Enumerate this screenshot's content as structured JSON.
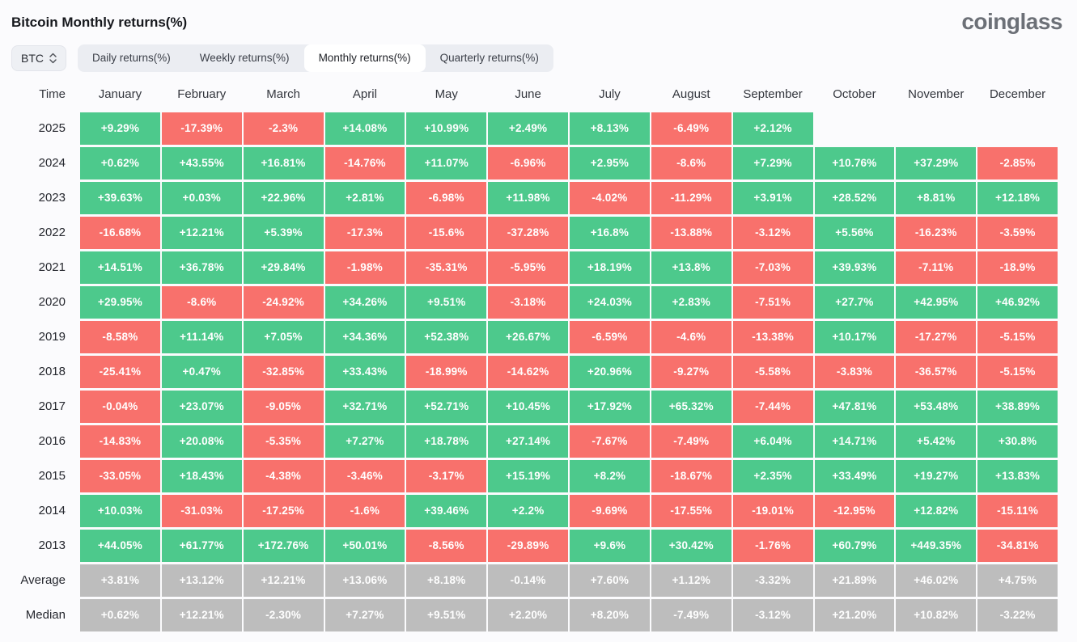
{
  "header": {
    "title": "Bitcoin Monthly returns(%)",
    "logo": "coinglass"
  },
  "toolbar": {
    "symbol_selector": {
      "value": "BTC"
    },
    "tabs": [
      {
        "label": "Daily returns(%)",
        "active": false
      },
      {
        "label": "Weekly returns(%)",
        "active": false
      },
      {
        "label": "Monthly returns(%)",
        "active": true
      },
      {
        "label": "Quarterly returns(%)",
        "active": false
      }
    ]
  },
  "colors": {
    "positive": "#4dc98c",
    "negative": "#f8716c",
    "summary": "#bdbdbd",
    "cell_text": "#ffffff"
  },
  "table": {
    "time_header": "Time",
    "months": [
      "January",
      "February",
      "March",
      "April",
      "May",
      "June",
      "July",
      "August",
      "September",
      "October",
      "November",
      "December"
    ],
    "rows": [
      {
        "label": "2025",
        "type": "year",
        "values": [
          "+9.29%",
          "-17.39%",
          "-2.3%",
          "+14.08%",
          "+10.99%",
          "+2.49%",
          "+8.13%",
          "-6.49%",
          "+2.12%",
          "",
          "",
          ""
        ]
      },
      {
        "label": "2024",
        "type": "year",
        "values": [
          "+0.62%",
          "+43.55%",
          "+16.81%",
          "-14.76%",
          "+11.07%",
          "-6.96%",
          "+2.95%",
          "-8.6%",
          "+7.29%",
          "+10.76%",
          "+37.29%",
          "-2.85%"
        ]
      },
      {
        "label": "2023",
        "type": "year",
        "values": [
          "+39.63%",
          "+0.03%",
          "+22.96%",
          "+2.81%",
          "-6.98%",
          "+11.98%",
          "-4.02%",
          "-11.29%",
          "+3.91%",
          "+28.52%",
          "+8.81%",
          "+12.18%"
        ]
      },
      {
        "label": "2022",
        "type": "year",
        "values": [
          "-16.68%",
          "+12.21%",
          "+5.39%",
          "-17.3%",
          "-15.6%",
          "-37.28%",
          "+16.8%",
          "-13.88%",
          "-3.12%",
          "+5.56%",
          "-16.23%",
          "-3.59%"
        ]
      },
      {
        "label": "2021",
        "type": "year",
        "values": [
          "+14.51%",
          "+36.78%",
          "+29.84%",
          "-1.98%",
          "-35.31%",
          "-5.95%",
          "+18.19%",
          "+13.8%",
          "-7.03%",
          "+39.93%",
          "-7.11%",
          "-18.9%"
        ]
      },
      {
        "label": "2020",
        "type": "year",
        "values": [
          "+29.95%",
          "-8.6%",
          "-24.92%",
          "+34.26%",
          "+9.51%",
          "-3.18%",
          "+24.03%",
          "+2.83%",
          "-7.51%",
          "+27.7%",
          "+42.95%",
          "+46.92%"
        ]
      },
      {
        "label": "2019",
        "type": "year",
        "values": [
          "-8.58%",
          "+11.14%",
          "+7.05%",
          "+34.36%",
          "+52.38%",
          "+26.67%",
          "-6.59%",
          "-4.6%",
          "-13.38%",
          "+10.17%",
          "-17.27%",
          "-5.15%"
        ]
      },
      {
        "label": "2018",
        "type": "year",
        "values": [
          "-25.41%",
          "+0.47%",
          "-32.85%",
          "+33.43%",
          "-18.99%",
          "-14.62%",
          "+20.96%",
          "-9.27%",
          "-5.58%",
          "-3.83%",
          "-36.57%",
          "-5.15%"
        ]
      },
      {
        "label": "2017",
        "type": "year",
        "values": [
          "-0.04%",
          "+23.07%",
          "-9.05%",
          "+32.71%",
          "+52.71%",
          "+10.45%",
          "+17.92%",
          "+65.32%",
          "-7.44%",
          "+47.81%",
          "+53.48%",
          "+38.89%"
        ]
      },
      {
        "label": "2016",
        "type": "year",
        "values": [
          "-14.83%",
          "+20.08%",
          "-5.35%",
          "+7.27%",
          "+18.78%",
          "+27.14%",
          "-7.67%",
          "-7.49%",
          "+6.04%",
          "+14.71%",
          "+5.42%",
          "+30.8%"
        ]
      },
      {
        "label": "2015",
        "type": "year",
        "values": [
          "-33.05%",
          "+18.43%",
          "-4.38%",
          "-3.46%",
          "-3.17%",
          "+15.19%",
          "+8.2%",
          "-18.67%",
          "+2.35%",
          "+33.49%",
          "+19.27%",
          "+13.83%"
        ]
      },
      {
        "label": "2014",
        "type": "year",
        "values": [
          "+10.03%",
          "-31.03%",
          "-17.25%",
          "-1.6%",
          "+39.46%",
          "+2.2%",
          "-9.69%",
          "-17.55%",
          "-19.01%",
          "-12.95%",
          "+12.82%",
          "-15.11%"
        ]
      },
      {
        "label": "2013",
        "type": "year",
        "values": [
          "+44.05%",
          "+61.77%",
          "+172.76%",
          "+50.01%",
          "-8.56%",
          "-29.89%",
          "+9.6%",
          "+30.42%",
          "-1.76%",
          "+60.79%",
          "+449.35%",
          "-34.81%"
        ]
      },
      {
        "label": "Average",
        "type": "summary",
        "values": [
          "+3.81%",
          "+13.12%",
          "+12.21%",
          "+13.06%",
          "+8.18%",
          "-0.14%",
          "+7.60%",
          "+1.12%",
          "-3.32%",
          "+21.89%",
          "+46.02%",
          "+4.75%"
        ]
      },
      {
        "label": "Median",
        "type": "summary",
        "values": [
          "+0.62%",
          "+12.21%",
          "-2.30%",
          "+7.27%",
          "+9.51%",
          "+2.20%",
          "+8.20%",
          "-7.49%",
          "-3.12%",
          "+21.20%",
          "+10.82%",
          "-3.22%"
        ]
      }
    ]
  },
  "chart_data": {
    "type": "heatmap",
    "title": "Bitcoin Monthly returns(%)",
    "x_categories": [
      "January",
      "February",
      "March",
      "April",
      "May",
      "June",
      "July",
      "August",
      "September",
      "October",
      "November",
      "December"
    ],
    "y_categories": [
      "2025",
      "2024",
      "2023",
      "2022",
      "2021",
      "2020",
      "2019",
      "2018",
      "2017",
      "2016",
      "2015",
      "2014",
      "2013",
      "Average",
      "Median"
    ],
    "values_pct": [
      [
        9.29,
        -17.39,
        -2.3,
        14.08,
        10.99,
        2.49,
        8.13,
        -6.49,
        2.12,
        null,
        null,
        null
      ],
      [
        0.62,
        43.55,
        16.81,
        -14.76,
        11.07,
        -6.96,
        2.95,
        -8.6,
        7.29,
        10.76,
        37.29,
        -2.85
      ],
      [
        39.63,
        0.03,
        22.96,
        2.81,
        -6.98,
        11.98,
        -4.02,
        -11.29,
        3.91,
        28.52,
        8.81,
        12.18
      ],
      [
        -16.68,
        12.21,
        5.39,
        -17.3,
        -15.6,
        -37.28,
        16.8,
        -13.88,
        -3.12,
        5.56,
        -16.23,
        -3.59
      ],
      [
        14.51,
        36.78,
        29.84,
        -1.98,
        -35.31,
        -5.95,
        18.19,
        13.8,
        -7.03,
        39.93,
        -7.11,
        -18.9
      ],
      [
        29.95,
        -8.6,
        -24.92,
        34.26,
        9.51,
        -3.18,
        24.03,
        2.83,
        -7.51,
        27.7,
        42.95,
        46.92
      ],
      [
        -8.58,
        11.14,
        7.05,
        34.36,
        52.38,
        26.67,
        -6.59,
        -4.6,
        -13.38,
        10.17,
        -17.27,
        -5.15
      ],
      [
        -25.41,
        0.47,
        -32.85,
        33.43,
        -18.99,
        -14.62,
        20.96,
        -9.27,
        -5.58,
        -3.83,
        -36.57,
        -5.15
      ],
      [
        -0.04,
        23.07,
        -9.05,
        32.71,
        52.71,
        10.45,
        17.92,
        65.32,
        -7.44,
        47.81,
        53.48,
        38.89
      ],
      [
        -14.83,
        20.08,
        -5.35,
        7.27,
        18.78,
        27.14,
        -7.67,
        -7.49,
        6.04,
        14.71,
        5.42,
        30.8
      ],
      [
        -33.05,
        18.43,
        -4.38,
        -3.46,
        -3.17,
        15.19,
        8.2,
        -18.67,
        2.35,
        33.49,
        19.27,
        13.83
      ],
      [
        10.03,
        -31.03,
        -17.25,
        -1.6,
        39.46,
        2.2,
        -9.69,
        -17.55,
        -19.01,
        -12.95,
        12.82,
        -15.11
      ],
      [
        44.05,
        61.77,
        172.76,
        50.01,
        -8.56,
        -29.89,
        9.6,
        30.42,
        -1.76,
        60.79,
        449.35,
        -34.81
      ],
      [
        3.81,
        13.12,
        12.21,
        13.06,
        8.18,
        -0.14,
        7.6,
        1.12,
        -3.32,
        21.89,
        46.02,
        4.75
      ],
      [
        0.62,
        12.21,
        -2.3,
        7.27,
        9.51,
        2.2,
        8.2,
        -7.49,
        -3.12,
        21.2,
        10.82,
        -3.22
      ]
    ]
  }
}
